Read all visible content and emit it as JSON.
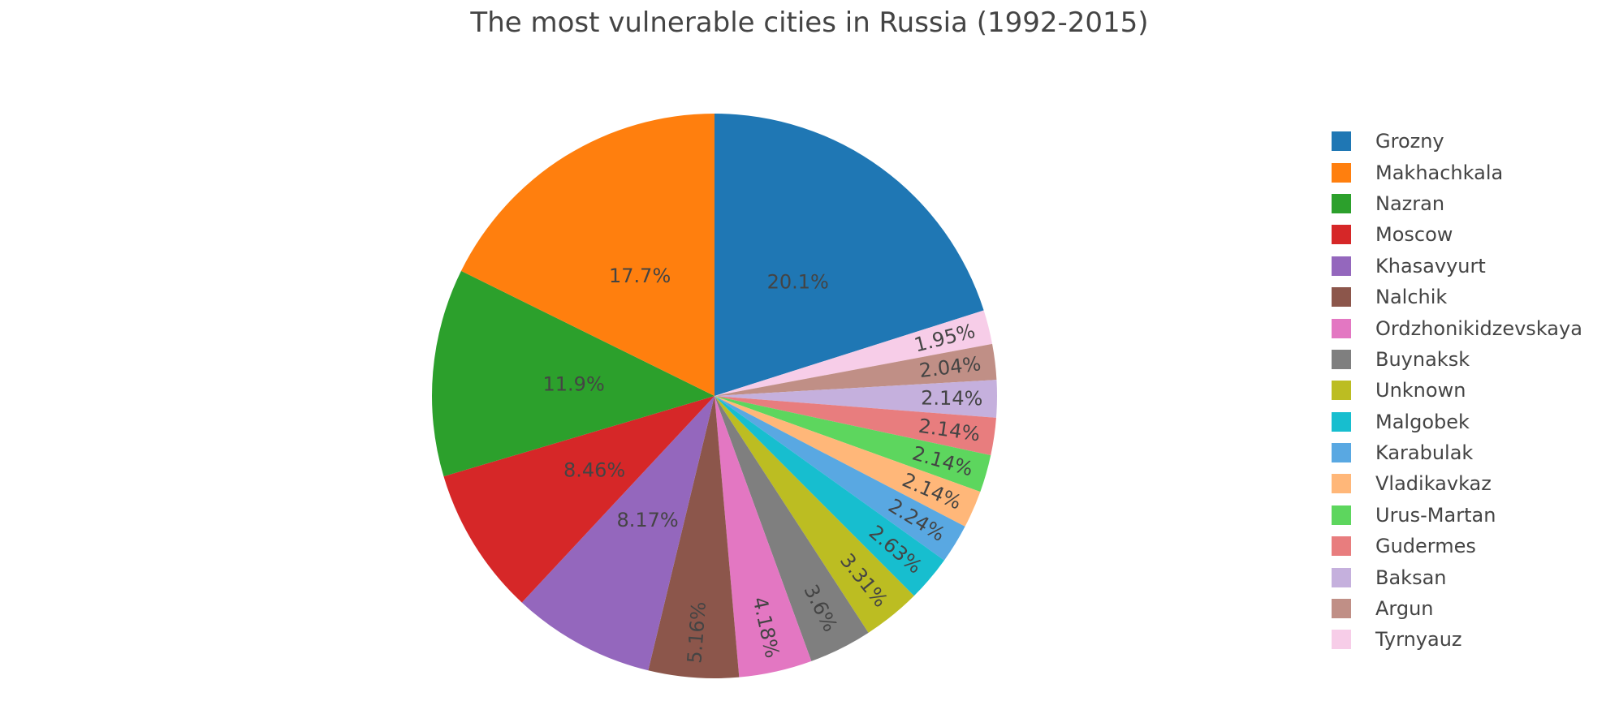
{
  "chart_data": {
    "type": "pie",
    "title": "The most vulnerable cities in Russia (1992-2015)",
    "slices": [
      {
        "label": "Grozny",
        "value": 20.1,
        "text": "20.1%",
        "color": "#1f77b4"
      },
      {
        "label": "Tyrnyauz",
        "value": 1.95,
        "text": "1.95%",
        "color": "#f7cde8"
      },
      {
        "label": "Argun",
        "value": 2.04,
        "text": "2.04%",
        "color": "#c08f86"
      },
      {
        "label": "Baksan",
        "value": 2.14,
        "text": "2.14%",
        "color": "#c5b0dd"
      },
      {
        "label": "Gudermes",
        "value": 2.14,
        "text": "2.14%",
        "color": "#e87d7e"
      },
      {
        "label": "Urus-Martan",
        "value": 2.14,
        "text": "2.14%",
        "color": "#5dd65e"
      },
      {
        "label": "Vladikavkaz",
        "value": 2.14,
        "text": "2.14%",
        "color": "#ffb779"
      },
      {
        "label": "Karabulak",
        "value": 2.24,
        "text": "2.24%",
        "color": "#59a8e2"
      },
      {
        "label": "Malgobek",
        "value": 2.63,
        "text": "2.63%",
        "color": "#17becf"
      },
      {
        "label": "Unknown",
        "value": 3.31,
        "text": "3.31%",
        "color": "#bcbd22"
      },
      {
        "label": "Buynaksk",
        "value": 3.6,
        "text": "3.6%",
        "color": "#7f7f7f"
      },
      {
        "label": "Ordzhonikidzevskaya",
        "value": 4.18,
        "text": "4.18%",
        "color": "#e377c2"
      },
      {
        "label": "Nalchik",
        "value": 5.16,
        "text": "5.16%",
        "color": "#8c564b"
      },
      {
        "label": "Khasavyurt",
        "value": 8.17,
        "text": "8.17%",
        "color": "#9467bd"
      },
      {
        "label": "Moscow",
        "value": 8.46,
        "text": "8.46%",
        "color": "#d62728"
      },
      {
        "label": "Nazran",
        "value": 11.9,
        "text": "11.9%",
        "color": "#2ca02c"
      },
      {
        "label": "Makhachkala",
        "value": 17.7,
        "text": "17.7%",
        "color": "#ff7f0e"
      }
    ],
    "legend": {
      "placement": "right",
      "entries": [
        {
          "label": "Grozny",
          "color": "#1f77b4"
        },
        {
          "label": "Makhachkala",
          "color": "#ff7f0e"
        },
        {
          "label": "Nazran",
          "color": "#2ca02c"
        },
        {
          "label": "Moscow",
          "color": "#d62728"
        },
        {
          "label": "Khasavyurt",
          "color": "#9467bd"
        },
        {
          "label": "Nalchik",
          "color": "#8c564b"
        },
        {
          "label": "Ordzhonikidzevskaya",
          "color": "#e377c2"
        },
        {
          "label": "Buynaksk",
          "color": "#7f7f7f"
        },
        {
          "label": "Unknown",
          "color": "#bcbd22"
        },
        {
          "label": "Malgobek",
          "color": "#17becf"
        },
        {
          "label": "Karabulak",
          "color": "#59a8e2"
        },
        {
          "label": "Vladikavkaz",
          "color": "#ffb779"
        },
        {
          "label": "Urus-Martan",
          "color": "#5dd65e"
        },
        {
          "label": "Gudermes",
          "color": "#e87d7e"
        },
        {
          "label": "Baksan",
          "color": "#c5b0dd"
        },
        {
          "label": "Argun",
          "color": "#c08f86"
        },
        {
          "label": "Tyrnyauz",
          "color": "#f7cde8"
        }
      ]
    }
  }
}
